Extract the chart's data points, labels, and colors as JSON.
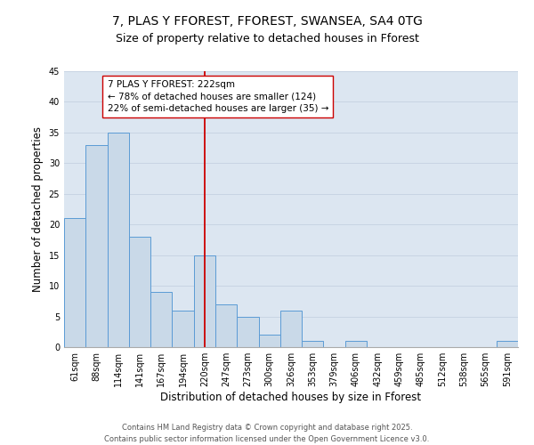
{
  "title1": "7, PLAS Y FFOREST, FFOREST, SWANSEA, SA4 0TG",
  "title2": "Size of property relative to detached houses in Fforest",
  "xlabel": "Distribution of detached houses by size in Fforest",
  "ylabel": "Number of detached properties",
  "categories": [
    "61sqm",
    "88sqm",
    "114sqm",
    "141sqm",
    "167sqm",
    "194sqm",
    "220sqm",
    "247sqm",
    "273sqm",
    "300sqm",
    "326sqm",
    "353sqm",
    "379sqm",
    "406sqm",
    "432sqm",
    "459sqm",
    "485sqm",
    "512sqm",
    "538sqm",
    "565sqm",
    "591sqm"
  ],
  "values": [
    21,
    33,
    35,
    18,
    9,
    6,
    15,
    7,
    5,
    2,
    6,
    1,
    0,
    1,
    0,
    0,
    0,
    0,
    0,
    0,
    1
  ],
  "bar_color": "#c9d9e8",
  "bar_edge_color": "#5b9bd5",
  "vline_x": 6,
  "vline_color": "#cc0000",
  "annotation_text": "7 PLAS Y FFOREST: 222sqm\n← 78% of detached houses are smaller (124)\n22% of semi-detached houses are larger (35) →",
  "annotation_box_color": "#ffffff",
  "annotation_box_edge_color": "#cc0000",
  "ylim": [
    0,
    45
  ],
  "yticks": [
    0,
    5,
    10,
    15,
    20,
    25,
    30,
    35,
    40,
    45
  ],
  "grid_color": "#c8d4e3",
  "background_color": "#dce6f1",
  "footer": "Contains HM Land Registry data © Crown copyright and database right 2025.\nContains public sector information licensed under the Open Government Licence v3.0.",
  "title_fontsize": 10,
  "subtitle_fontsize": 9,
  "axis_fontsize": 8.5,
  "tick_fontsize": 7,
  "annotation_fontsize": 7.5,
  "footer_fontsize": 6
}
